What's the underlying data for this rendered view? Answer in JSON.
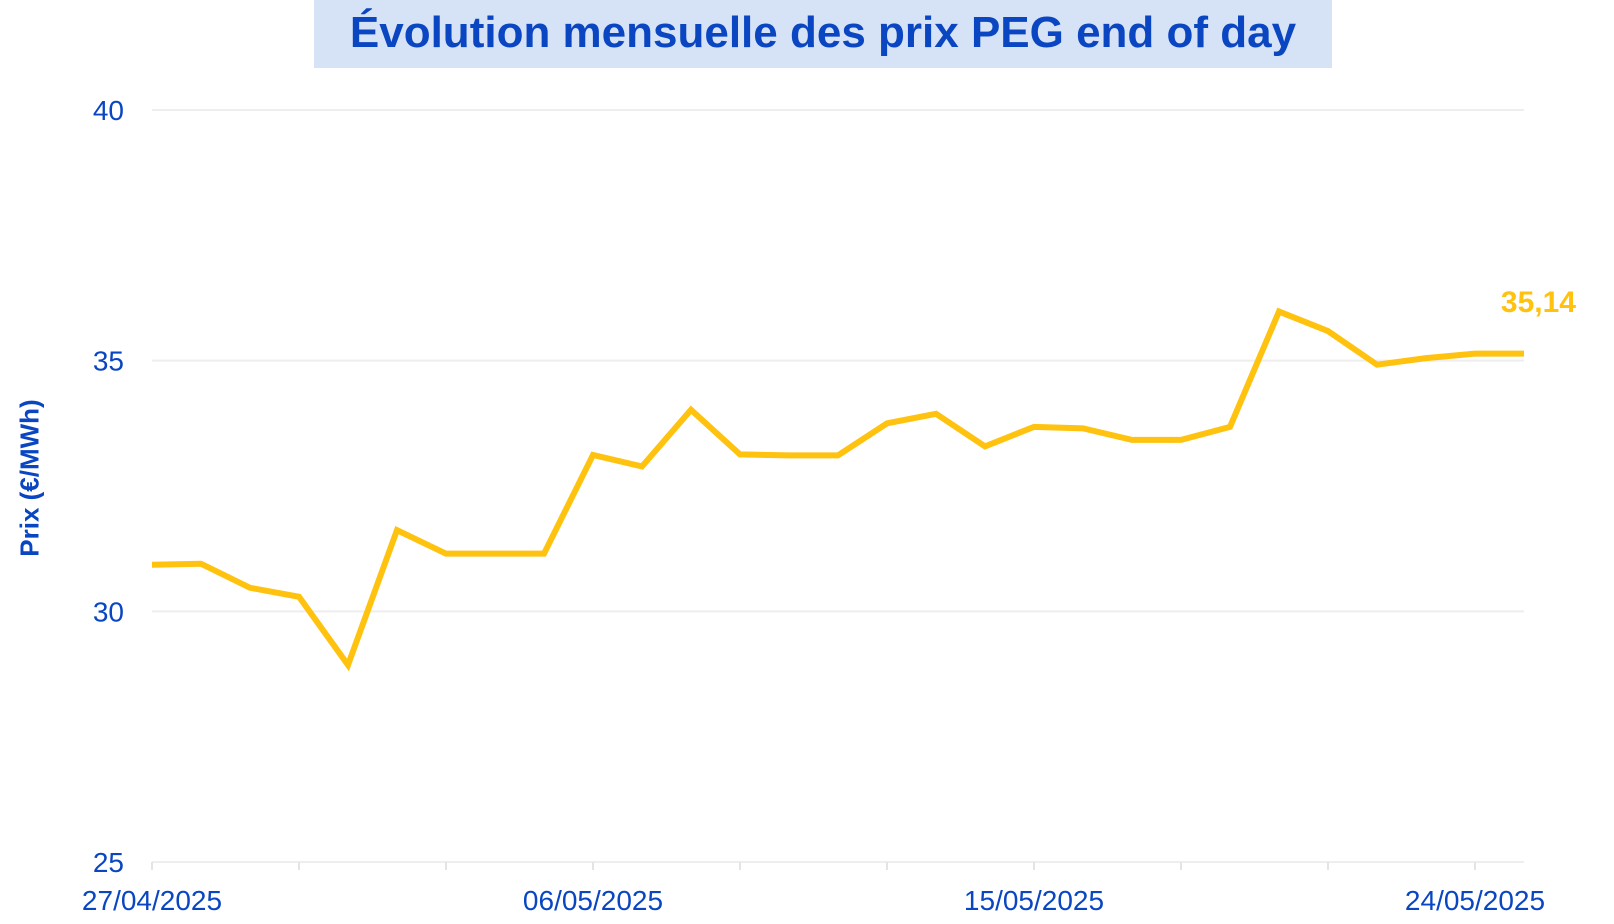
{
  "chart_data": {
    "type": "line",
    "title": "Évolution mensuelle des prix PEG end of day",
    "xlabel": "",
    "ylabel": "Prix (€/MWh)",
    "ylim": [
      25,
      40
    ],
    "yticks": [
      "25",
      "30",
      "35",
      "40"
    ],
    "ytick_values": [
      25,
      30,
      35,
      40
    ],
    "x_tick_labels": [
      "27/04/2025",
      "06/05/2025",
      "15/05/2025",
      "24/05/2025"
    ],
    "x_tick_indices": [
      0,
      9,
      18,
      27
    ],
    "grid": true,
    "last_value_label": "35,14",
    "series": [
      {
        "name": "PEG end of day",
        "color": "#ffc20e",
        "x": [
          "27/04/2025",
          "28/04/2025",
          "29/04/2025",
          "30/04/2025",
          "01/05/2025",
          "02/05/2025",
          "03/05/2025",
          "04/05/2025",
          "05/05/2025",
          "06/05/2025",
          "07/05/2025",
          "08/05/2025",
          "09/05/2025",
          "10/05/2025",
          "11/05/2025",
          "12/05/2025",
          "13/05/2025",
          "14/05/2025",
          "15/05/2025",
          "16/05/2025",
          "17/05/2025",
          "18/05/2025",
          "19/05/2025",
          "20/05/2025",
          "21/05/2025",
          "22/05/2025",
          "23/05/2025",
          "24/05/2025",
          "25/05/2025"
        ],
        "values": [
          30.93,
          30.95,
          30.47,
          30.29,
          28.93,
          31.62,
          31.15,
          31.15,
          31.15,
          33.12,
          32.89,
          34.02,
          33.13,
          33.11,
          33.11,
          33.75,
          33.94,
          33.29,
          33.68,
          33.65,
          33.42,
          33.42,
          33.68,
          35.98,
          35.59,
          34.92,
          35.05,
          35.14,
          35.14
        ]
      }
    ]
  }
}
